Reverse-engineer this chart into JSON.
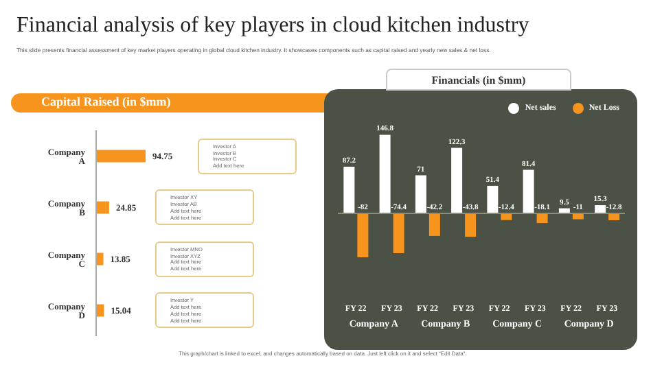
{
  "chart_data": [
    {
      "type": "other",
      "title": "Financial analysis of key players in cloud kitchen industry",
      "subtitle": "This slide presents financial assessment of key market players operating in global cloud kitchen industry. It showcases components such as capital raised and yearly new sales & net loss.",
      "annotations": [
        "This graph/chart is linked to excel, and changes automatically based on data. Just left click on it and select \"Edit Data\"."
      ]
    },
    {
      "type": "bar",
      "orientation": "horizontal",
      "title": "Capital Raised (in $mm)",
      "categories": [
        "Company A",
        "Company B",
        "Company C",
        "Company D"
      ],
      "values": [
        94.75,
        24.85,
        13.85,
        15.04
      ],
      "color": "#f7941d",
      "data_labels": true,
      "annotations": [
        "Investor A\nInvestor B\nInvestor C\nAdd text here",
        "Investor XY\nInvestor AB\nAdd text here\nAdd text here",
        "Investor MNO\nInvestor XYZ\nAdd text here\nAdd text here",
        "Investor Y\nAdd text here\nAdd text here\nAdd text here"
      ]
    },
    {
      "type": "bar",
      "title": "Financials (in $mm)",
      "categories": [
        "FY 22",
        "FY 23",
        "FY 22",
        "FY 23",
        "FY 22",
        "FY 23",
        "FY 22",
        "FY 23"
      ],
      "series": [
        {
          "name": "Net sales",
          "color": "#ffffff",
          "values": [
            87.2,
            146.8,
            71,
            122.3,
            51.4,
            81.4,
            9.5,
            15.3
          ]
        },
        {
          "name": "Net Loss",
          "color": "#f7941d",
          "values": [
            -82,
            -74.4,
            -42.2,
            -43.8,
            -12.4,
            -18.1,
            -11,
            -12.8
          ]
        }
      ],
      "data_labels": true,
      "legend": "top right",
      "ref_lines": [
        {
          "axis": "y",
          "value": 0,
          "color": "#8a8f80"
        }
      ],
      "annotations": [
        "Company A",
        "Company B",
        "Company C",
        "Company D"
      ]
    }
  ]
}
